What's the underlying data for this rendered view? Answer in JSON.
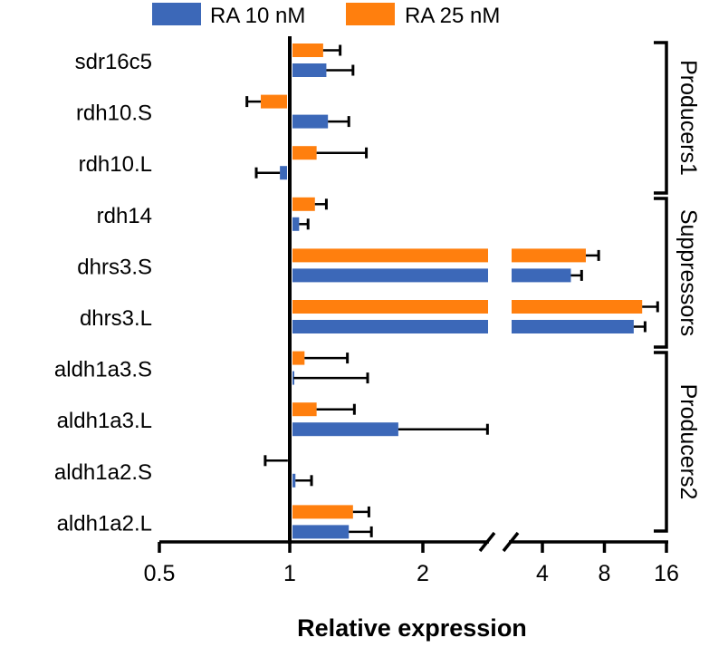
{
  "chart_data": {
    "type": "bar",
    "orientation": "horizontal",
    "xlabel": "Relative expression",
    "ylabel": "",
    "x_scale": "log2 with axis break",
    "xlim": [
      0.5,
      16
    ],
    "axis_break": [
      2.9,
      2.9
    ],
    "baseline": 1,
    "x_ticks": [
      0.5,
      1,
      2,
      4,
      8,
      16
    ],
    "x_tick_labels": [
      "0.5",
      "1",
      "2",
      "4",
      "8",
      "16"
    ],
    "legend_position": "top",
    "grid": false,
    "categories": [
      "sdr16c5",
      "rdh10.S",
      "rdh10.L",
      "rdh14",
      "dhrs3.S",
      "dhrs3.L",
      "aldh1a3.S",
      "aldh1a3.L",
      "aldh1a2.S",
      "aldh1a2.L"
    ],
    "series": [
      {
        "name": "RA 10 nM",
        "color": "#3c68b8",
        "values": [
          1.21,
          1.22,
          0.95,
          1.05,
          5.5,
          11.1,
          1.02,
          1.76,
          1.03,
          1.36
        ],
        "error_end": [
          1.39,
          1.36,
          0.84,
          1.1,
          6.2,
          12.6,
          1.5,
          2.8,
          1.12,
          1.53
        ]
      },
      {
        "name": "RA 25 nM",
        "color": "#ff7f0e",
        "values": [
          1.19,
          0.86,
          1.15,
          1.14,
          6.5,
          12.2,
          1.08,
          1.15,
          0.99,
          1.39
        ],
        "error_end": [
          1.3,
          0.8,
          1.49,
          1.21,
          7.5,
          14.5,
          1.35,
          1.4,
          0.88,
          1.51
        ]
      }
    ],
    "groups": [
      {
        "label": "Producers1",
        "categories": [
          "sdr16c5",
          "rdh10.S",
          "rdh10.L"
        ]
      },
      {
        "label": "Suppressors",
        "categories": [
          "rdh14",
          "dhrs3.S",
          "dhrs3.L"
        ]
      },
      {
        "label": "Producers2",
        "categories": [
          "aldh1a3.S",
          "aldh1a3.L",
          "aldh1a2.S",
          "aldh1a2.L"
        ]
      }
    ]
  }
}
